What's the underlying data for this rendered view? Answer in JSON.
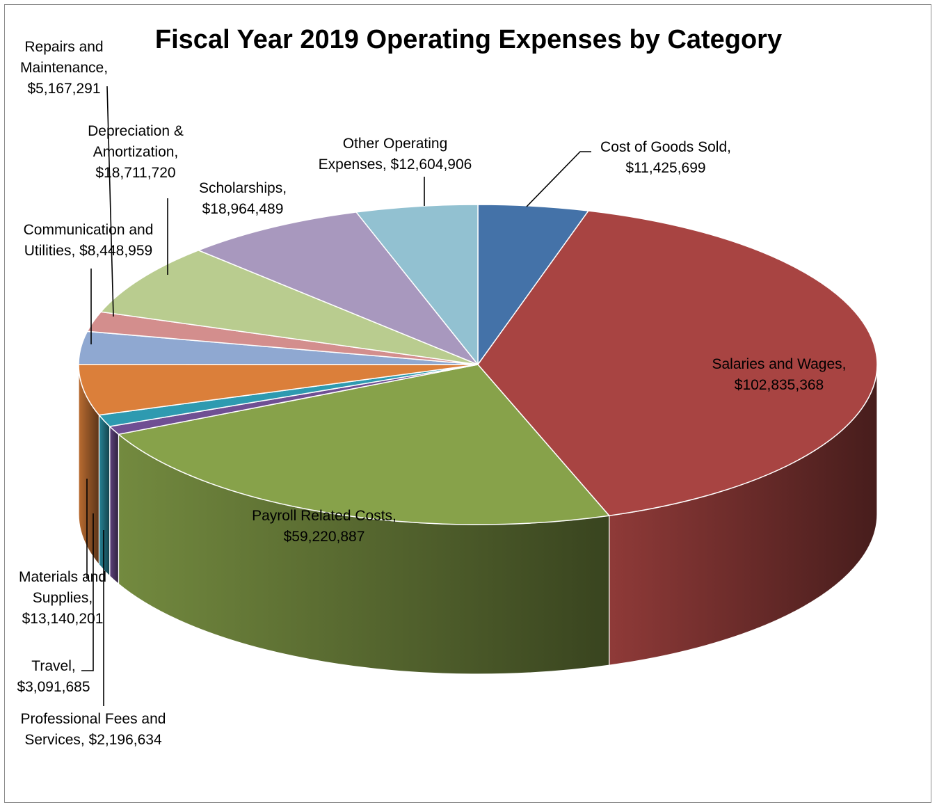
{
  "chart_data": {
    "type": "pie",
    "style": "3d",
    "title": "Fiscal Year 2019 Operating Expenses by Category",
    "slices": [
      {
        "name": "Cost of Goods Sold",
        "value": 11425699,
        "label_lines": [
          "Cost of Goods Sold,",
          "$11,425,699"
        ],
        "color": "#4472A8"
      },
      {
        "name": "Salaries and Wages",
        "value": 102835368,
        "label_lines": [
          "Salaries and Wages,",
          "$102,835,368"
        ],
        "color": "#A84442"
      },
      {
        "name": "Payroll Related Costs",
        "value": 59220887,
        "label_lines": [
          "Payroll Related Costs,",
          "$59,220,887"
        ],
        "color": "#87A24A"
      },
      {
        "name": "Professional Fees and Services",
        "value": 2196634,
        "label_lines": [
          "Professional Fees and",
          "Services, $2,196,634"
        ],
        "color": "#6F4F93"
      },
      {
        "name": "Travel",
        "value": 3091685,
        "label_lines": [
          "Travel,",
          "$3,091,685"
        ],
        "color": "#2E9AB0"
      },
      {
        "name": "Materials and Supplies",
        "value": 13140201,
        "label_lines": [
          "Materials and",
          "Supplies,",
          "$13,140,201"
        ],
        "color": "#DB7F3A"
      },
      {
        "name": "Communication and Utilities",
        "value": 8448959,
        "label_lines": [
          "Communication and",
          "Utilities, $8,448,959"
        ],
        "color": "#8FA8D1"
      },
      {
        "name": "Repairs and Maintenance",
        "value": 5167291,
        "label_lines": [
          "Repairs and",
          "Maintenance,",
          "$5,167,291"
        ],
        "color": "#D38E8D"
      },
      {
        "name": "Depreciation & Amortization",
        "value": 18711720,
        "label_lines": [
          "Depreciation &",
          "Amortization,",
          "$18,711,720"
        ],
        "color": "#B9CC8F"
      },
      {
        "name": "Scholarships",
        "value": 18964489,
        "label_lines": [
          "Scholarships,",
          "$18,964,489"
        ],
        "color": "#A898BE"
      },
      {
        "name": "Other Operating Expenses",
        "value": 12604906,
        "label_lines": [
          "Other Operating",
          "Expenses, $12,604,906"
        ],
        "color": "#92C1D1"
      }
    ]
  }
}
